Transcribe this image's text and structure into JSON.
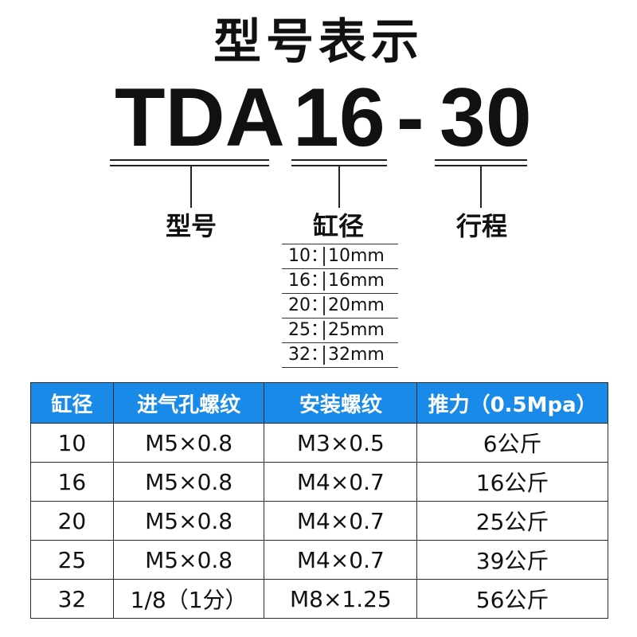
{
  "title": "型号表示",
  "code": {
    "series": "TDA",
    "bore": "16",
    "dash": "-",
    "stroke": "30"
  },
  "labels": {
    "model": "型号",
    "bore": "缸径",
    "stroke": "行程"
  },
  "bore_options": [
    {
      "key": "10：",
      "value": "10mm"
    },
    {
      "key": "16：",
      "value": "16mm"
    },
    {
      "key": "20：",
      "value": "20mm"
    },
    {
      "key": "25：",
      "value": "25mm"
    },
    {
      "key": "32：",
      "value": "32mm"
    }
  ],
  "spec_table": {
    "headers": [
      "缸径",
      "进气孔螺纹",
      "安装螺纹",
      "推力（0.5Mpa）"
    ],
    "rows": [
      [
        "10",
        "M5×0.8",
        "M3×0.5",
        "6公斤"
      ],
      [
        "16",
        "M5×0.8",
        "M4×0.7",
        "16公斤"
      ],
      [
        "20",
        "M5×0.8",
        "M4×0.7",
        "25公斤"
      ],
      [
        "25",
        "M5×0.8",
        "M4×0.7",
        "39公斤"
      ],
      [
        "32",
        "1/8（1分）",
        "M8×1.25",
        "56公斤"
      ]
    ]
  },
  "colors": {
    "header_bg": "#1a8ae8",
    "header_text": "#ffffff",
    "text": "#111111"
  }
}
